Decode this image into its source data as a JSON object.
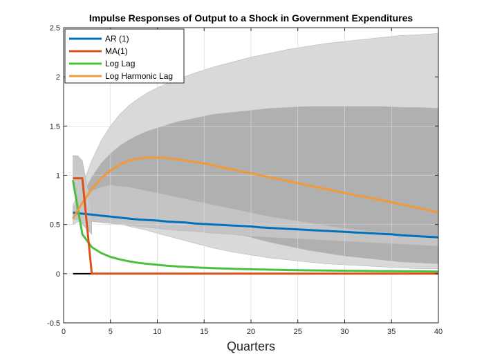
{
  "chart_data": {
    "type": "line",
    "title": "Impulse Responses of Output to a Shock in Government Expenditures",
    "xlabel": "Quarters",
    "ylabel": "",
    "xlim": [
      0,
      40
    ],
    "ylim": [
      -0.5,
      2.5
    ],
    "xticks": [
      0,
      5,
      10,
      15,
      20,
      25,
      30,
      35,
      40
    ],
    "yticks": [
      -0.5,
      0,
      0.5,
      1,
      1.5,
      2,
      2.5
    ],
    "xtick_labels": [
      "0",
      "5",
      "10",
      "15",
      "20",
      "25",
      "30",
      "35",
      "40"
    ],
    "ytick_labels": [
      "-0.5",
      "0",
      "0.5",
      "1",
      "1.5",
      "2",
      "2.5"
    ],
    "grid": true,
    "legend_position": "top-left",
    "x": [
      1,
      2,
      3,
      4,
      5,
      6,
      7,
      8,
      9,
      10,
      11,
      12,
      13,
      14,
      15,
      16,
      17,
      18,
      19,
      20,
      21,
      22,
      23,
      24,
      25,
      26,
      27,
      28,
      29,
      30,
      31,
      32,
      33,
      34,
      35,
      36,
      37,
      38,
      39,
      40
    ],
    "series": [
      {
        "name": "AR (1)",
        "color": "#0072BD",
        "values": [
          0.62,
          0.61,
          0.6,
          0.59,
          0.58,
          0.57,
          0.56,
          0.55,
          0.545,
          0.54,
          0.53,
          0.525,
          0.52,
          0.51,
          0.505,
          0.5,
          0.495,
          0.49,
          0.485,
          0.48,
          0.47,
          0.465,
          0.46,
          0.455,
          0.45,
          0.445,
          0.44,
          0.435,
          0.43,
          0.425,
          0.42,
          0.415,
          0.41,
          0.405,
          0.4,
          0.39,
          0.385,
          0.38,
          0.375,
          0.37
        ]
      },
      {
        "name": "MA(1)",
        "color": "#D95319",
        "values": [
          0.97,
          0.97,
          0,
          0,
          0,
          0,
          0,
          0,
          0,
          0,
          0,
          0,
          0,
          0,
          0,
          0,
          0,
          0,
          0,
          0,
          0,
          0,
          0,
          0,
          0,
          0,
          0,
          0,
          0,
          0,
          0,
          0,
          0,
          0,
          0,
          0,
          0,
          0,
          0,
          0
        ]
      },
      {
        "name": "Log Lag",
        "color": "#4DBF3E",
        "values": [
          0.95,
          0.4,
          0.27,
          0.21,
          0.17,
          0.145,
          0.125,
          0.11,
          0.1,
          0.09,
          0.082,
          0.075,
          0.069,
          0.064,
          0.06,
          0.056,
          0.053,
          0.05,
          0.047,
          0.045,
          0.043,
          0.041,
          0.039,
          0.037,
          0.036,
          0.034,
          0.033,
          0.032,
          0.031,
          0.03,
          0.029,
          0.028,
          0.027,
          0.026,
          0.026,
          0.025,
          0.024,
          0.024,
          0.023,
          0.022
        ]
      },
      {
        "name": "Log Harmonic Lag",
        "color": "#F29A38",
        "values": [
          0.56,
          0.72,
          0.86,
          0.97,
          1.05,
          1.11,
          1.15,
          1.17,
          1.18,
          1.18,
          1.175,
          1.165,
          1.15,
          1.135,
          1.12,
          1.1,
          1.08,
          1.06,
          1.04,
          1.02,
          1.0,
          0.98,
          0.96,
          0.94,
          0.92,
          0.9,
          0.88,
          0.86,
          0.84,
          0.82,
          0.8,
          0.785,
          0.765,
          0.745,
          0.725,
          0.705,
          0.685,
          0.665,
          0.645,
          0.62
        ]
      }
    ],
    "bands": [
      {
        "color": "#d9d9d9",
        "x": [
          1,
          2,
          3,
          4,
          5,
          6,
          7,
          8,
          9,
          10,
          12,
          14,
          16,
          18,
          20,
          22,
          24,
          26,
          28,
          30,
          32,
          34,
          36,
          38,
          40
        ],
        "upper": [
          0.7,
          0.9,
          1.15,
          1.35,
          1.5,
          1.62,
          1.71,
          1.78,
          1.84,
          1.89,
          1.97,
          2.04,
          2.1,
          2.15,
          2.2,
          2.24,
          2.28,
          2.31,
          2.34,
          2.36,
          2.38,
          2.4,
          2.42,
          2.43,
          2.44
        ],
        "lower": [
          0.5,
          0.55,
          0.56,
          0.55,
          0.53,
          0.51,
          0.48,
          0.46,
          0.44,
          0.41,
          0.36,
          0.31,
          0.26,
          0.22,
          0.19,
          0.16,
          0.14,
          0.12,
          0.1,
          0.09,
          0.08,
          0.07,
          0.06,
          0.05,
          0.05
        ]
      },
      {
        "color": "#b0b0b0",
        "x": [
          1,
          2,
          3,
          4,
          5,
          6,
          7,
          8,
          9,
          10,
          12,
          14,
          16,
          18,
          20,
          22,
          24,
          26,
          28,
          30,
          32,
          34,
          36,
          38,
          40
        ],
        "upper": [
          0.62,
          0.8,
          0.98,
          1.12,
          1.22,
          1.3,
          1.36,
          1.41,
          1.45,
          1.48,
          1.54,
          1.58,
          1.62,
          1.64,
          1.66,
          1.68,
          1.69,
          1.7,
          1.7,
          1.7,
          1.7,
          1.7,
          1.69,
          1.69,
          1.68
        ],
        "lower": [
          0.55,
          0.58,
          0.62,
          0.64,
          0.65,
          0.66,
          0.66,
          0.65,
          0.63,
          0.61,
          0.57,
          0.52,
          0.47,
          0.42,
          0.37,
          0.32,
          0.28,
          0.24,
          0.21,
          0.18,
          0.16,
          0.14,
          0.12,
          0.11,
          0.1
        ]
      },
      {
        "color": "#c4c4c4",
        "x": [
          1,
          2,
          3,
          4,
          5,
          6,
          7,
          8,
          9,
          10,
          12,
          14,
          16,
          18,
          20,
          22,
          24,
          26,
          28,
          30,
          32,
          34,
          36,
          38,
          40
        ],
        "upper": [
          0.68,
          0.76,
          0.84,
          0.88,
          0.9,
          0.89,
          0.88,
          0.86,
          0.84,
          0.82,
          0.78,
          0.74,
          0.7,
          0.66,
          0.62,
          0.58,
          0.55,
          0.52,
          0.49,
          0.46,
          0.44,
          0.42,
          0.4,
          0.38,
          0.36
        ],
        "lower": [
          0.55,
          0.54,
          0.53,
          0.52,
          0.51,
          0.5,
          0.49,
          0.48,
          0.47,
          0.46,
          0.44,
          0.43,
          0.41,
          0.4,
          0.38,
          0.37,
          0.36,
          0.35,
          0.34,
          0.33,
          0.32,
          0.31,
          0.3,
          0.29,
          0.28
        ]
      },
      {
        "color": "#c8c8c8",
        "x": [
          1,
          1.5,
          2,
          2.5,
          3
        ],
        "upper": [
          1.2,
          1.2,
          1.15,
          0.9,
          0.7
        ],
        "lower": [
          0.9,
          0.6,
          0.5,
          0.45,
          0.4
        ]
      }
    ],
    "zero_line_color": "#000000"
  }
}
